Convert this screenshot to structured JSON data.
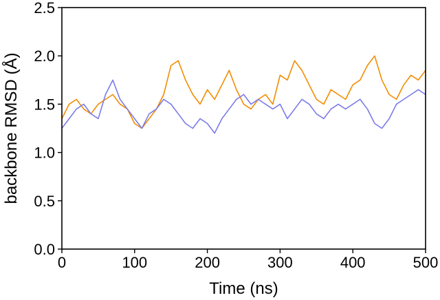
{
  "chart_data": {
    "type": "line",
    "xlabel": "Time (ns)",
    "ylabel": "backbone RMSD (Å)",
    "xlim": [
      0,
      500
    ],
    "ylim": [
      0.0,
      2.5
    ],
    "xticks": [
      0,
      100,
      200,
      300,
      400,
      500
    ],
    "xtick_labels": [
      "0",
      "100",
      "200",
      "300",
      "400",
      "500"
    ],
    "yticks": [
      0.0,
      0.5,
      1.0,
      1.5,
      2.0,
      2.5
    ],
    "ytick_labels": [
      "0.0",
      "0.5",
      "1.0",
      "1.5",
      "2.0",
      "2.5"
    ],
    "grid": false,
    "legend": "none",
    "x": [
      0,
      10,
      20,
      30,
      40,
      50,
      60,
      70,
      80,
      90,
      100,
      110,
      120,
      130,
      140,
      150,
      160,
      170,
      180,
      190,
      200,
      210,
      220,
      230,
      240,
      250,
      260,
      270,
      280,
      290,
      300,
      310,
      320,
      330,
      340,
      350,
      360,
      370,
      380,
      390,
      400,
      410,
      420,
      430,
      440,
      450,
      460,
      470,
      480,
      490,
      500
    ],
    "series": [
      {
        "color": "#f28c00",
        "values": [
          1.35,
          1.5,
          1.55,
          1.45,
          1.4,
          1.5,
          1.55,
          1.6,
          1.5,
          1.45,
          1.3,
          1.25,
          1.35,
          1.45,
          1.6,
          1.9,
          1.95,
          1.75,
          1.6,
          1.5,
          1.65,
          1.55,
          1.7,
          1.85,
          1.65,
          1.5,
          1.45,
          1.55,
          1.6,
          1.5,
          1.8,
          1.75,
          1.95,
          1.85,
          1.7,
          1.55,
          1.5,
          1.65,
          1.6,
          1.55,
          1.7,
          1.75,
          1.9,
          2.0,
          1.75,
          1.6,
          1.55,
          1.7,
          1.8,
          1.75,
          1.85
        ]
      },
      {
        "color": "#7b7bea",
        "values": [
          1.25,
          1.35,
          1.45,
          1.5,
          1.4,
          1.35,
          1.6,
          1.75,
          1.55,
          1.45,
          1.35,
          1.25,
          1.4,
          1.45,
          1.55,
          1.5,
          1.4,
          1.3,
          1.25,
          1.35,
          1.3,
          1.2,
          1.35,
          1.45,
          1.55,
          1.6,
          1.5,
          1.55,
          1.5,
          1.45,
          1.5,
          1.35,
          1.45,
          1.55,
          1.5,
          1.4,
          1.35,
          1.45,
          1.5,
          1.45,
          1.5,
          1.55,
          1.45,
          1.3,
          1.25,
          1.35,
          1.5,
          1.55,
          1.6,
          1.65,
          1.6
        ]
      }
    ]
  }
}
